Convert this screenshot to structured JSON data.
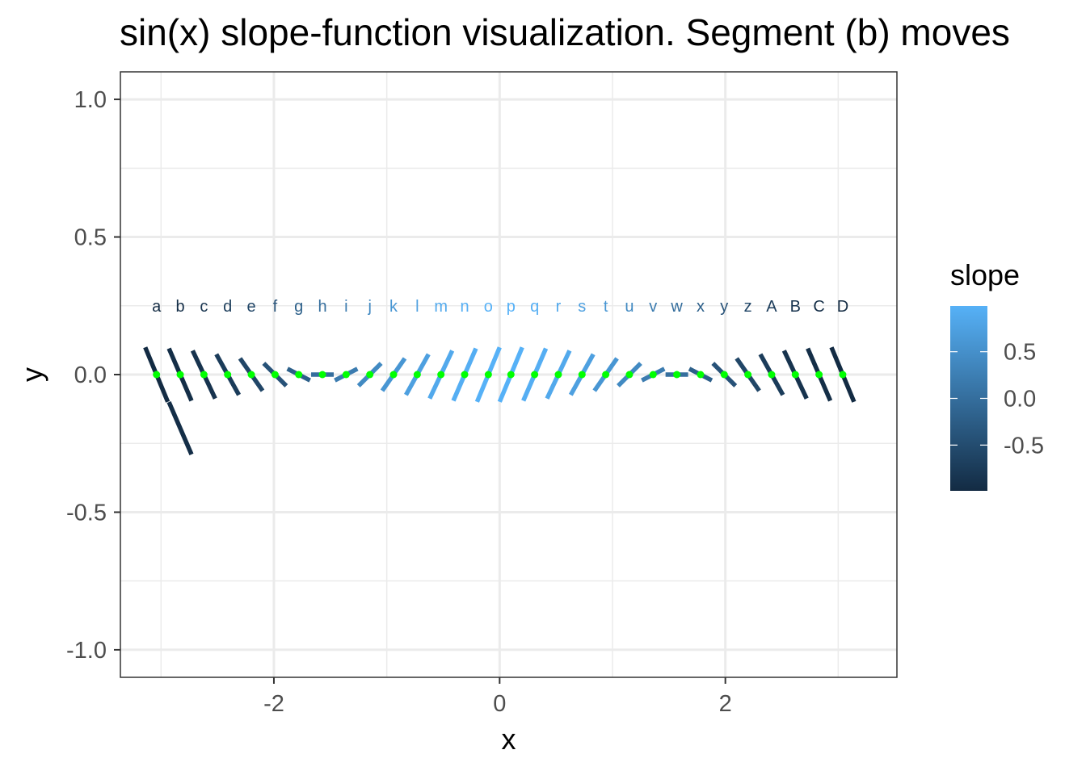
{
  "title": "sin(x) slope-function visualization. Segment (b) moves",
  "chart_data": {
    "type": "segment",
    "title": "sin(x) slope-function visualization. Segment (b) moves",
    "xlabel": "x",
    "ylabel": "y",
    "xlim": [
      -3.36,
      3.52
    ],
    "ylim": [
      -1.1,
      1.1
    ],
    "x_ticks": [
      -2,
      0,
      2
    ],
    "x_tick_labels": [
      "-2",
      "0",
      "2"
    ],
    "y_ticks": [
      -1.0,
      -0.5,
      0.0,
      0.5,
      1.0
    ],
    "y_tick_labels": [
      "-1.0",
      "-0.5",
      "0.0",
      "0.5",
      "1.0"
    ],
    "grid": true,
    "segment_half_dx": 0.1,
    "label_y": 0.25,
    "point_color": "#00ff00",
    "colors": {
      "low": "#132b43",
      "high": "#56b1f7"
    },
    "labels": [
      "a",
      "b",
      "c",
      "d",
      "e",
      "f",
      "g",
      "h",
      "i",
      "j",
      "k",
      "l",
      "m",
      "n",
      "o",
      "p",
      "q",
      "r",
      "s",
      "t",
      "u",
      "v",
      "w",
      "x",
      "y",
      "z",
      "A",
      "B",
      "C",
      "D"
    ],
    "x": [
      -3.04,
      -2.83,
      -2.62,
      -2.41,
      -2.2,
      -1.99,
      -1.78,
      -1.57,
      -1.36,
      -1.15,
      -0.94,
      -0.73,
      -0.52,
      -0.31,
      -0.1,
      0.1,
      0.31,
      0.52,
      0.73,
      0.94,
      1.15,
      1.36,
      1.57,
      1.78,
      1.99,
      2.2,
      2.41,
      2.62,
      2.83,
      3.04
    ],
    "y": [
      0,
      0,
      0,
      0,
      0,
      0,
      0,
      0,
      0,
      0,
      0,
      0,
      0,
      0,
      0,
      0,
      0,
      0,
      0,
      0,
      0,
      0,
      0,
      0,
      0,
      0,
      0,
      0,
      0,
      0
    ],
    "slope": [
      -0.99,
      -0.95,
      -0.87,
      -0.74,
      -0.59,
      -0.41,
      -0.21,
      0.0,
      0.21,
      0.41,
      0.59,
      0.74,
      0.87,
      0.95,
      0.99,
      0.99,
      0.95,
      0.87,
      0.74,
      0.59,
      0.41,
      0.21,
      0.0,
      -0.21,
      -0.41,
      -0.59,
      -0.74,
      -0.87,
      -0.95,
      -0.99
    ],
    "moved_segment": {
      "label": "b",
      "x": [
        -2.93,
        -2.73
      ],
      "y": [
        -0.1,
        -0.29
      ],
      "slope": -0.95
    },
    "legend": {
      "title": "slope",
      "placement": "right",
      "ticks": [
        0.5,
        0.0,
        -0.5
      ],
      "tick_labels": [
        "0.5",
        "0.0",
        "-0.5"
      ],
      "range": [
        -0.99,
        0.99
      ]
    }
  }
}
